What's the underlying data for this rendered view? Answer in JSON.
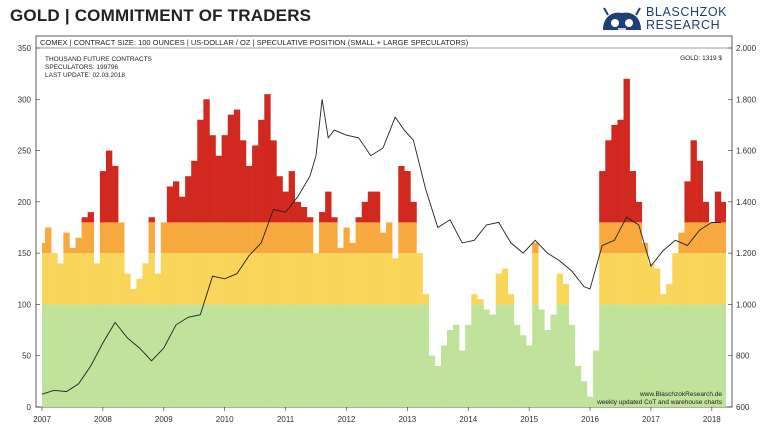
{
  "header": {
    "title": "GOLD | COMMITMENT OF TRADERS",
    "brand_line1": "BLASCHZOK",
    "brand_line2": "RESEARCH"
  },
  "chart_data": {
    "type": "bar",
    "subtitle": "COMEX | CONTRACT SIZE: 100 OUNCES | US-DOLLAR / OZ | SPECULATIVE POSITION (SMALL + LARGE SPECULATORS)",
    "info_lines": [
      "THOUSAND FUTURE CONTRACTS",
      "SPECULATORS: 199796",
      "LAST UPDATE: 02.03.2018"
    ],
    "price_label": "GOLD: 1319 $",
    "footer_lines": [
      "www.BlaschzokResearch.de",
      "weekly updated CoT and warehouse charts"
    ],
    "x_ticks": [
      "2007",
      "2008",
      "2009",
      "2010",
      "2011",
      "2012",
      "2013",
      "2014",
      "2015",
      "2016",
      "2017",
      "2018"
    ],
    "xlim": [
      2007.0,
      2018.2
    ],
    "left_axis": {
      "ticks": [
        "0",
        "50",
        "100",
        "150",
        "200",
        "250",
        "300",
        "350"
      ],
      "ylim": [
        0,
        350
      ]
    },
    "right_axis": {
      "ticks": [
        "600",
        "800",
        "1.000",
        "1.200",
        "1.400",
        "1.600",
        "1.800",
        "2.000"
      ],
      "ylim": [
        600,
        2000
      ]
    },
    "color_bands": [
      {
        "from": 0,
        "to": 100,
        "color": "#bfe39b"
      },
      {
        "from": 100,
        "to": 150,
        "color": "#f9d65a"
      },
      {
        "from": 150,
        "to": 180,
        "color": "#f7a93e"
      },
      {
        "from": 180,
        "to": 350,
        "color": "#d1281f"
      }
    ],
    "series": [
      {
        "type": "bar",
        "axis": "left",
        "x": [
          2007.0,
          2007.1,
          2007.2,
          2007.3,
          2007.4,
          2007.5,
          2007.6,
          2007.7,
          2007.8,
          2007.9,
          2008.0,
          2008.1,
          2008.2,
          2008.3,
          2008.4,
          2008.5,
          2008.6,
          2008.7,
          2008.8,
          2008.9,
          2009.0,
          2009.1,
          2009.2,
          2009.3,
          2009.4,
          2009.5,
          2009.6,
          2009.7,
          2009.8,
          2009.9,
          2010.0,
          2010.1,
          2010.2,
          2010.3,
          2010.4,
          2010.5,
          2010.6,
          2010.7,
          2010.8,
          2010.9,
          2011.0,
          2011.1,
          2011.2,
          2011.3,
          2011.4,
          2011.5,
          2011.6,
          2011.7,
          2011.8,
          2011.9,
          2012.0,
          2012.1,
          2012.2,
          2012.3,
          2012.4,
          2012.5,
          2012.6,
          2012.7,
          2012.8,
          2012.9,
          2013.0,
          2013.1,
          2013.2,
          2013.3,
          2013.4,
          2013.5,
          2013.6,
          2013.7,
          2013.8,
          2013.9,
          2014.0,
          2014.1,
          2014.2,
          2014.3,
          2014.4,
          2014.5,
          2014.6,
          2014.7,
          2014.8,
          2014.9,
          2015.0,
          2015.1,
          2015.2,
          2015.3,
          2015.4,
          2015.5,
          2015.6,
          2015.7,
          2015.8,
          2015.9,
          2016.0,
          2016.1,
          2016.2,
          2016.3,
          2016.4,
          2016.5,
          2016.6,
          2016.7,
          2016.8,
          2016.9,
          2017.0,
          2017.1,
          2017.2,
          2017.3,
          2017.4,
          2017.5,
          2017.6,
          2017.7,
          2017.8,
          2017.9,
          2018.0,
          2018.1,
          2018.2
        ],
        "values": [
          160,
          175,
          150,
          140,
          170,
          155,
          165,
          185,
          190,
          140,
          230,
          250,
          235,
          180,
          130,
          115,
          125,
          140,
          185,
          130,
          180,
          215,
          220,
          205,
          225,
          240,
          280,
          300,
          265,
          245,
          265,
          285,
          290,
          260,
          235,
          255,
          280,
          305,
          260,
          225,
          210,
          230,
          200,
          195,
          185,
          150,
          190,
          210,
          185,
          155,
          175,
          160,
          185,
          200,
          210,
          210,
          170,
          180,
          145,
          235,
          230,
          200,
          150,
          110,
          50,
          40,
          60,
          75,
          80,
          55,
          80,
          110,
          105,
          95,
          90,
          130,
          135,
          110,
          80,
          70,
          60,
          160,
          95,
          75,
          90,
          130,
          120,
          80,
          40,
          25,
          10,
          55,
          230,
          260,
          275,
          280,
          320,
          230,
          200,
          160,
          140,
          135,
          110,
          120,
          150,
          170,
          220,
          260,
          240,
          200,
          180,
          210,
          200
        ]
      },
      {
        "name": "GOLD",
        "type": "line",
        "axis": "right",
        "x": [
          2007.0,
          2007.2,
          2007.4,
          2007.6,
          2007.8,
          2008.0,
          2008.2,
          2008.4,
          2008.6,
          2008.8,
          2009.0,
          2009.2,
          2009.4,
          2009.6,
          2009.8,
          2010.0,
          2010.2,
          2010.4,
          2010.6,
          2010.8,
          2011.0,
          2011.2,
          2011.4,
          2011.5,
          2011.6,
          2011.7,
          2011.8,
          2012.0,
          2012.2,
          2012.4,
          2012.6,
          2012.8,
          2012.95,
          2013.1,
          2013.3,
          2013.5,
          2013.7,
          2013.9,
          2014.1,
          2014.3,
          2014.5,
          2014.7,
          2014.9,
          2015.1,
          2015.3,
          2015.5,
          2015.7,
          2015.9,
          2016.0,
          2016.2,
          2016.4,
          2016.6,
          2016.8,
          2017.0,
          2017.2,
          2017.4,
          2017.6,
          2017.8,
          2018.0,
          2018.15
        ],
        "values": [
          650,
          665,
          660,
          690,
          760,
          850,
          930,
          870,
          830,
          780,
          830,
          920,
          950,
          960,
          1110,
          1100,
          1120,
          1190,
          1240,
          1370,
          1360,
          1420,
          1500,
          1580,
          1800,
          1650,
          1680,
          1660,
          1650,
          1580,
          1610,
          1730,
          1680,
          1640,
          1450,
          1300,
          1330,
          1240,
          1250,
          1310,
          1320,
          1240,
          1200,
          1250,
          1200,
          1170,
          1130,
          1070,
          1060,
          1230,
          1250,
          1340,
          1310,
          1150,
          1210,
          1250,
          1230,
          1290,
          1320,
          1319
        ]
      }
    ],
    "grid": false
  }
}
